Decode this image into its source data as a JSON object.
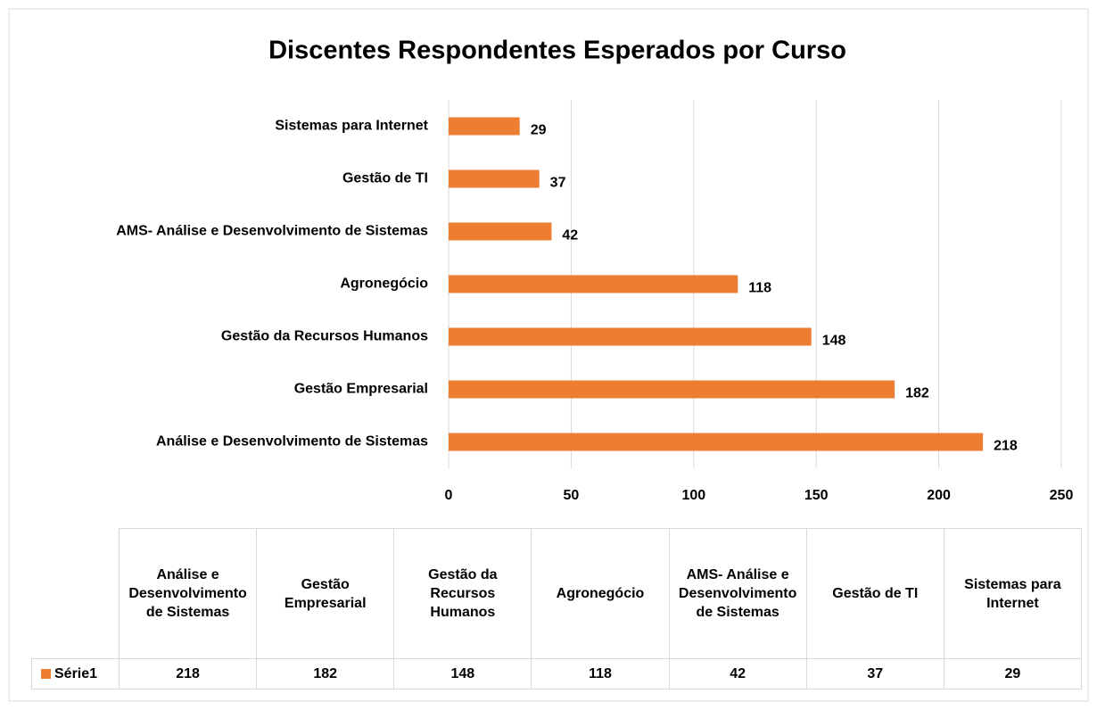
{
  "chart_data": {
    "type": "bar",
    "orientation": "horizontal",
    "title": "Discentes Respondentes Esperados por Curso",
    "categories": [
      "Análise e Desenvolvimento de Sistemas",
      "Gestão Empresarial",
      "Gestão da Recursos Humanos",
      "Agronegócio",
      "AMS- Análise e Desenvolvimento de Sistemas",
      "Gestão de TI",
      "Sistemas para Internet"
    ],
    "series": [
      {
        "name": "Série1",
        "color": "#ed7d31",
        "values": [
          218,
          182,
          148,
          118,
          42,
          37,
          29
        ]
      }
    ],
    "xlim": [
      0,
      250
    ],
    "xticks": [
      0,
      50,
      100,
      150,
      200,
      250
    ],
    "grid": true,
    "data_table": true
  }
}
